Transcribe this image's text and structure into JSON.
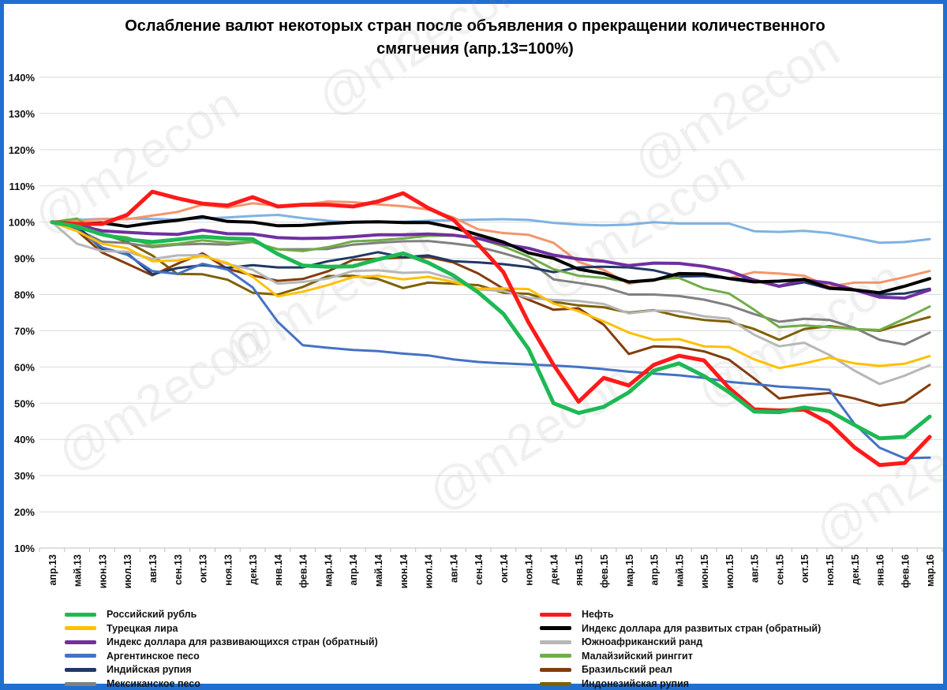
{
  "chart_data": {
    "type": "line",
    "title": "Ослабление валют некоторых стран после объявления о прекращении количественного смягчения  (апр.13=100%)",
    "title_lines": [
      "Ослабление валют некоторых стран после объявления о прекращении количественного",
      "смягчения  (апр.13=100%)"
    ],
    "watermark": "@m2econ",
    "xlabel": "",
    "ylabel": "",
    "ylim": [
      10,
      140
    ],
    "y_ticks": [
      10,
      20,
      30,
      40,
      50,
      60,
      70,
      80,
      90,
      100,
      110,
      120,
      130,
      140
    ],
    "y_tick_labels": [
      "10%",
      "20%",
      "30%",
      "40%",
      "50%",
      "60%",
      "70%",
      "80%",
      "90%",
      "100%",
      "110%",
      "120%",
      "130%",
      "140%"
    ],
    "grid": true,
    "legend_position": "bottom",
    "categories": [
      "апр.13",
      "май.13",
      "июн.13",
      "июл.13",
      "авг.13",
      "сен.13",
      "окт.13",
      "ноя.13",
      "дек.13",
      "янв.14",
      "фев.14",
      "мар.14",
      "апр.14",
      "май.14",
      "июн.14",
      "июл.14",
      "авг.14",
      "сен.14",
      "окт.14",
      "ноя.14",
      "дек.14",
      "янв.15",
      "фев.15",
      "мар.15",
      "апр.15",
      "май.15",
      "июн.15",
      "июл.15",
      "авг.15",
      "сен.15",
      "окт.15",
      "ноя.15",
      "дек.15",
      "янв.16",
      "фев.16",
      "мар.16"
    ],
    "series": [
      {
        "name": "Российский рубль",
        "color": "#1db954",
        "values": [
          100,
          98.8,
          96.6,
          95.2,
          94.5,
          95.2,
          96.0,
          95.5,
          95.3,
          91.2,
          88.0,
          87.7,
          87.8,
          89.7,
          91.4,
          88.8,
          85.3,
          80.6,
          74.7,
          65.0,
          50.0,
          47.3,
          49.0,
          53.0,
          59.0,
          61.0,
          57.5,
          53.0,
          47.7,
          47.5,
          48.8,
          47.8,
          44.0,
          40.3,
          40.7,
          46.3
        ]
      },
      {
        "name": "Нефть",
        "color": "#ff1a1a",
        "values": [
          100,
          99.5,
          99.5,
          102.0,
          108.4,
          106.6,
          105.1,
          104.6,
          106.9,
          104.3,
          104.8,
          104.8,
          104.3,
          105.7,
          108.0,
          103.9,
          100.7,
          93.8,
          86.2,
          72.3,
          60.6,
          50.4,
          57.0,
          54.9,
          60.6,
          63.1,
          61.8,
          54.2,
          48.3,
          48.0,
          48.2,
          44.5,
          37.8,
          32.9,
          33.5,
          40.7
        ]
      },
      {
        "name": "Турецкая лира",
        "color": "#ffc000",
        "values": [
          100,
          97.5,
          94.0,
          92.8,
          89.2,
          89.4,
          90.7,
          88.7,
          84.9,
          79.5,
          80.8,
          82.6,
          84.8,
          85.2,
          84.2,
          84.9,
          83.5,
          81.6,
          81.7,
          81.5,
          77.5,
          75.4,
          72.6,
          69.5,
          67.5,
          67.7,
          65.7,
          65.5,
          62.1,
          59.7,
          61.0,
          62.6,
          61.0,
          60.3,
          60.9,
          63.0
        ]
      },
      {
        "name": "Индекс доллара для развитых стран (обратный)",
        "color": "#000000",
        "values": [
          100,
          99.5,
          99.8,
          98.8,
          99.8,
          100.5,
          101.5,
          100.2,
          100.0,
          99.0,
          99.1,
          99.6,
          100.0,
          100.1,
          99.9,
          99.9,
          98.5,
          96.5,
          94.5,
          91.5,
          90.0,
          87.0,
          85.8,
          83.5,
          84.0,
          85.8,
          85.7,
          84.4,
          83.5,
          83.7,
          84.2,
          81.8,
          81.3,
          80.5,
          82.3,
          84.4
        ]
      },
      {
        "name": "Индекс доллара для развивающихся стран (обратный)",
        "color": "#7030a0",
        "values": [
          100,
          99.2,
          97.6,
          97.2,
          96.8,
          96.6,
          97.8,
          96.8,
          96.7,
          95.7,
          95.5,
          95.6,
          96.0,
          96.5,
          96.5,
          96.7,
          96.4,
          95.5,
          93.9,
          92.8,
          90.9,
          89.8,
          89.2,
          88.0,
          88.7,
          88.6,
          87.8,
          86.5,
          84.0,
          82.3,
          84.0,
          83.2,
          81.3,
          79.3,
          79.0,
          81.3
        ]
      },
      {
        "name": "Южноафриканский ранд",
        "color": "#b7b7b7",
        "values": [
          100,
          94.0,
          92.0,
          91.8,
          89.8,
          90.8,
          90.9,
          88.4,
          86.9,
          83.0,
          83.5,
          84.4,
          86.5,
          86.7,
          86.0,
          86.2,
          84.3,
          81.4,
          81.0,
          79.1,
          78.5,
          78.2,
          77.4,
          74.8,
          75.6,
          75.4,
          74.0,
          73.3,
          68.9,
          65.7,
          66.7,
          63.3,
          59.0,
          55.3,
          57.6,
          60.5
        ]
      },
      {
        "name": "Аргентинское песо",
        "color": "#4472c4",
        "values": [
          100,
          98.0,
          93.0,
          91.0,
          86.5,
          85.7,
          88.5,
          86.9,
          82.0,
          72.5,
          66.0,
          65.3,
          64.7,
          64.4,
          63.7,
          63.2,
          62.1,
          61.4,
          61.0,
          60.7,
          60.4,
          60.0,
          59.4,
          58.7,
          58.2,
          57.7,
          57.0,
          55.9,
          55.3,
          54.6,
          54.2,
          53.7,
          44.3,
          37.7,
          34.8,
          35.0
        ]
      },
      {
        "name": "Малайзийский ринггит",
        "color": "#70ad47",
        "values": [
          100,
          101.0,
          96.5,
          95.8,
          93.5,
          94.0,
          95.0,
          94.3,
          94.5,
          92.5,
          92.0,
          93.1,
          94.7,
          95.0,
          95.5,
          96.2,
          96.3,
          95.5,
          93.3,
          90.5,
          87.0,
          85.2,
          84.6,
          83.6,
          84.2,
          84.6,
          81.7,
          80.3,
          75.8,
          71.0,
          71.5,
          71.0,
          70.5,
          70.2,
          73.3,
          76.7
        ]
      },
      {
        "name": "Индийская рупия",
        "color": "#203864",
        "values": [
          100,
          99.0,
          92.5,
          91.4,
          85.6,
          87.3,
          88.1,
          87.4,
          88.1,
          87.5,
          87.5,
          89.2,
          90.3,
          91.7,
          90.3,
          90.8,
          89.2,
          88.9,
          88.4,
          87.6,
          86.2,
          87.5,
          87.7,
          87.5,
          86.7,
          85.0,
          85.1,
          84.5,
          84.1,
          82.2,
          83.4,
          81.6,
          81.3,
          80.0,
          80.3,
          81.6
        ]
      },
      {
        "name": "Бразильский реал",
        "color": "#843c0c",
        "values": [
          100,
          97.6,
          91.6,
          88.5,
          85.3,
          88.5,
          91.4,
          87.1,
          85.3,
          83.8,
          84.3,
          86.4,
          89.6,
          89.9,
          90.2,
          90.3,
          88.9,
          85.8,
          81.6,
          78.6,
          75.8,
          76.2,
          71.7,
          63.6,
          65.7,
          65.5,
          64.3,
          62.0,
          56.8,
          51.3,
          52.2,
          52.8,
          51.3,
          49.3,
          50.3,
          55.1
        ]
      },
      {
        "name": "Мексиканское песо",
        "color": "#808080",
        "values": [
          100,
          98.0,
          94.6,
          94.2,
          93.1,
          93.8,
          94.0,
          93.8,
          94.5,
          92.5,
          92.5,
          92.6,
          93.8,
          94.3,
          94.7,
          94.8,
          94.1,
          93.2,
          91.4,
          89.4,
          84.2,
          83.2,
          82.1,
          80.0,
          80.0,
          79.6,
          78.6,
          77.0,
          74.6,
          72.5,
          73.3,
          73.0,
          70.8,
          67.5,
          66.2,
          69.5
        ]
      },
      {
        "name": "Индонезийская рупия",
        "color": "#7f6000",
        "values": [
          100,
          99.0,
          96.8,
          94.5,
          90.8,
          85.7,
          85.6,
          84.1,
          80.5,
          80.0,
          82.1,
          85.1,
          85.2,
          84.3,
          81.8,
          83.3,
          83.0,
          82.6,
          80.5,
          80.2,
          78.0,
          77.0,
          76.5,
          75.0,
          75.7,
          74.0,
          73.0,
          72.5,
          70.5,
          67.5,
          70.5,
          71.3,
          70.5,
          70.0,
          72.0,
          73.8
        ]
      },
      {
        "name": "",
        "color": "#f4956b",
        "values": [
          100,
          100.3,
          100.8,
          100.8,
          101.8,
          102.8,
          104.8,
          104.0,
          105.2,
          104.5,
          104.8,
          105.7,
          105.5,
          104.9,
          104.4,
          103.5,
          101.3,
          98.0,
          97.0,
          96.5,
          94.3,
          89.0,
          86.8,
          83.0,
          84.2,
          85.0,
          85.5,
          84.5,
          86.2,
          85.8,
          85.2,
          82.2,
          83.3,
          83.3,
          84.8,
          86.5
        ]
      },
      {
        "name": "",
        "color": "#7fb2e3",
        "values": [
          100,
          100.6,
          100.9,
          101.0,
          100.9,
          100.7,
          101.0,
          101.3,
          101.7,
          102.0,
          101.1,
          100.4,
          99.9,
          100.0,
          100.1,
          100.4,
          100.5,
          100.7,
          100.8,
          100.6,
          99.8,
          99.3,
          99.1,
          99.3,
          100.0,
          99.6,
          99.6,
          99.6,
          97.5,
          97.3,
          97.6,
          97.0,
          95.7,
          94.3,
          94.5,
          95.3
        ]
      }
    ]
  }
}
